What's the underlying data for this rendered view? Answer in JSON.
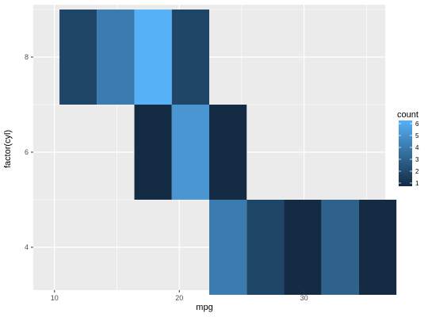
{
  "chart_data": {
    "type": "heatmap",
    "xlabel": "mpg",
    "ylabel": "factor(cyl)",
    "x_ticks": [
      10,
      20,
      30
    ],
    "y_ticks": [
      4,
      6,
      8
    ],
    "xlim": [
      8.3,
      36.5
    ],
    "ylim": [
      3.1,
      9.1
    ],
    "grid": true,
    "legend": {
      "title": "count",
      "placement": "right",
      "ticks": [
        1,
        2,
        3,
        4,
        5,
        6
      ],
      "low_color": "#132B43",
      "high_color": "#56B1F7",
      "range": [
        1,
        6
      ]
    },
    "cells": [
      {
        "x0": 10.4,
        "x1": 13.4,
        "y0": 7.0,
        "y1": 9.0,
        "count": 2
      },
      {
        "x0": 13.4,
        "x1": 16.4,
        "y0": 7.0,
        "y1": 9.0,
        "count": 4
      },
      {
        "x0": 16.4,
        "x1": 19.4,
        "y0": 7.0,
        "y1": 9.0,
        "count": 6
      },
      {
        "x0": 19.4,
        "x1": 22.4,
        "y0": 7.0,
        "y1": 9.0,
        "count": 2
      },
      {
        "x0": 16.4,
        "x1": 19.4,
        "y0": 5.0,
        "y1": 7.0,
        "count": 1
      },
      {
        "x0": 19.4,
        "x1": 22.4,
        "y0": 5.0,
        "y1": 7.0,
        "count": 5
      },
      {
        "x0": 22.4,
        "x1": 25.4,
        "y0": 5.0,
        "y1": 7.0,
        "count": 1
      },
      {
        "x0": 22.4,
        "x1": 25.4,
        "y0": 3.0,
        "y1": 5.0,
        "count": 4
      },
      {
        "x0": 25.4,
        "x1": 28.4,
        "y0": 3.0,
        "y1": 5.0,
        "count": 2
      },
      {
        "x0": 28.4,
        "x1": 31.4,
        "y0": 3.0,
        "y1": 5.0,
        "count": 1
      },
      {
        "x0": 31.4,
        "x1": 34.4,
        "y0": 3.0,
        "y1": 5.0,
        "count": 3
      },
      {
        "x0": 34.4,
        "x1": 37.4,
        "y0": 3.0,
        "y1": 5.0,
        "count": 1
      }
    ]
  }
}
